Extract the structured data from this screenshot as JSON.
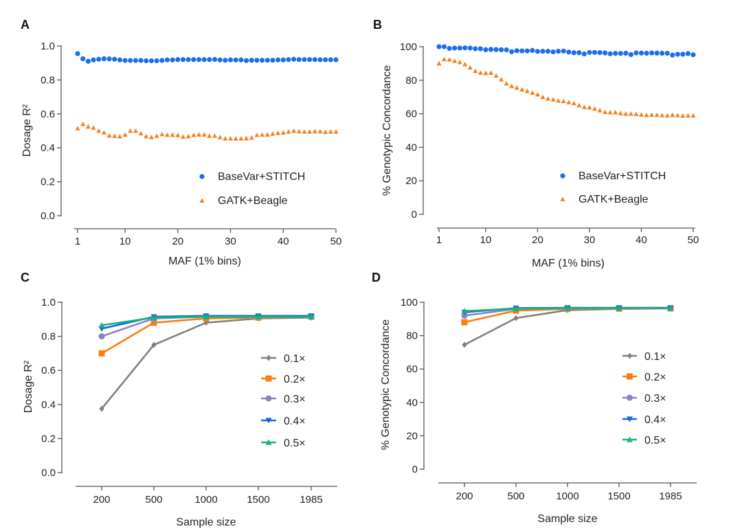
{
  "chart_data": [
    {
      "panel": "A",
      "type": "scatter",
      "xlabel": "MAF (1% bins)",
      "ylabel": "Dosage R²",
      "ylim": [
        0,
        1.0
      ],
      "xlim": [
        1,
        50
      ],
      "yticks": [
        "0.0",
        "0.2",
        "0.4",
        "0.6",
        "0.8",
        "1.0"
      ],
      "ytick_values": [
        0,
        0.2,
        0.4,
        0.6,
        0.8,
        1.0
      ],
      "xticks": [
        "1",
        "10",
        "20",
        "30",
        "40",
        "50"
      ],
      "xtick_values": [
        1,
        10,
        20,
        30,
        40,
        50
      ],
      "legend_position": "bottom-right",
      "series": [
        {
          "name": "BaseVar+STITCH",
          "marker": "circle",
          "color": "#1a6fe8",
          "values": [
            0.955,
            0.925,
            0.91,
            0.918,
            0.922,
            0.925,
            0.924,
            0.922,
            0.918,
            0.915,
            0.915,
            0.915,
            0.915,
            0.913,
            0.913,
            0.913,
            0.915,
            0.918,
            0.918,
            0.92,
            0.92,
            0.92,
            0.92,
            0.92,
            0.92,
            0.92,
            0.921,
            0.918,
            0.916,
            0.918,
            0.918,
            0.918,
            0.914,
            0.916,
            0.916,
            0.916,
            0.916,
            0.916,
            0.918,
            0.918,
            0.92,
            0.922,
            0.92,
            0.92,
            0.92,
            0.92,
            0.919,
            0.919,
            0.919,
            0.919
          ]
        },
        {
          "name": "GATK+Beagle",
          "marker": "triangle",
          "color": "#f58220",
          "values": [
            0.515,
            0.54,
            0.525,
            0.518,
            0.5,
            0.49,
            0.472,
            0.47,
            0.467,
            0.477,
            0.5,
            0.5,
            0.485,
            0.468,
            0.463,
            0.47,
            0.48,
            0.476,
            0.476,
            0.474,
            0.465,
            0.468,
            0.475,
            0.478,
            0.478,
            0.47,
            0.471,
            0.462,
            0.455,
            0.455,
            0.455,
            0.455,
            0.456,
            0.46,
            0.475,
            0.477,
            0.478,
            0.483,
            0.487,
            0.49,
            0.495,
            0.5,
            0.497,
            0.495,
            0.495,
            0.497,
            0.497,
            0.493,
            0.495,
            0.495
          ]
        }
      ]
    },
    {
      "panel": "B",
      "type": "scatter",
      "xlabel": "MAF (1% bins)",
      "ylabel": "% Genotypic Concordance",
      "ylim": [
        0,
        100
      ],
      "xlim": [
        1,
        50
      ],
      "yticks": [
        "0",
        "20",
        "40",
        "60",
        "80",
        "100"
      ],
      "ytick_values": [
        0,
        20,
        40,
        60,
        80,
        100
      ],
      "xticks": [
        "1",
        "10",
        "20",
        "30",
        "40",
        "50"
      ],
      "xtick_values": [
        1,
        10,
        20,
        30,
        40,
        50
      ],
      "legend_position": "bottom-right",
      "series": [
        {
          "name": "BaseVar+STITCH",
          "marker": "circle",
          "color": "#1a6fe8",
          "values": [
            100,
            100,
            99,
            99.2,
            99.2,
            99.3,
            99.2,
            98.8,
            98.8,
            98.2,
            98.4,
            98.3,
            98.2,
            98.1,
            97,
            97.6,
            97.5,
            97.5,
            97.8,
            97.2,
            97.3,
            97.3,
            96.9,
            97.3,
            97.4,
            96.8,
            96.4,
            96.4,
            95.7,
            96.6,
            96.6,
            96.5,
            96.3,
            95.8,
            96,
            96,
            96.1,
            95.3,
            96.3,
            96.2,
            96.1,
            96.3,
            96.2,
            96.1,
            96.1,
            95,
            95.5,
            95.5,
            95.9,
            95.2
          ]
        },
        {
          "name": "GATK+Beagle",
          "marker": "triangle",
          "color": "#f58220",
          "values": [
            90,
            92.5,
            92.3,
            91.5,
            90.8,
            89.5,
            87.5,
            85.5,
            84.5,
            84.3,
            84.4,
            82.8,
            80.5,
            78,
            76.5,
            75.5,
            74.5,
            73.5,
            72.5,
            71.5,
            70,
            69,
            68.5,
            67.8,
            67.5,
            66.8,
            66.3,
            65,
            64,
            63.8,
            63,
            62,
            61,
            60.8,
            60.8,
            60.3,
            60,
            60,
            59.8,
            59.5,
            59.2,
            59.4,
            59.3,
            59.1,
            58.9,
            59.2,
            59.1,
            58.8,
            58.9,
            58.9
          ]
        }
      ]
    },
    {
      "panel": "C",
      "type": "line",
      "xlabel": "Sample size",
      "ylabel": "Dosage R²",
      "ylim": [
        0,
        1.0
      ],
      "yticks": [
        "0.0",
        "0.2",
        "0.4",
        "0.6",
        "0.8",
        "1.0"
      ],
      "ytick_values": [
        0,
        0.2,
        0.4,
        0.6,
        0.8,
        1.0
      ],
      "categories": [
        "200",
        "500",
        "1000",
        "1500",
        "1985"
      ],
      "legend_position": "right",
      "series": [
        {
          "name": "0.1×",
          "marker": "diamond",
          "color": "#808080",
          "values": [
            0.375,
            0.75,
            0.88,
            0.905,
            0.91
          ]
        },
        {
          "name": "0.2×",
          "marker": "square",
          "color": "#fa7d12",
          "values": [
            0.7,
            0.88,
            0.905,
            0.91,
            0.915
          ]
        },
        {
          "name": "0.3×",
          "marker": "circle",
          "color": "#8a84c8",
          "values": [
            0.8,
            0.905,
            0.915,
            0.915,
            0.915
          ]
        },
        {
          "name": "0.4×",
          "marker": "triangle-down",
          "color": "#1565e0",
          "values": [
            0.845,
            0.915,
            0.92,
            0.92,
            0.92
          ]
        },
        {
          "name": "0.5×",
          "marker": "triangle",
          "color": "#13b37a",
          "values": [
            0.865,
            0.91,
            0.915,
            0.915,
            0.915
          ]
        }
      ]
    },
    {
      "panel": "D",
      "type": "line",
      "xlabel": "Sample size",
      "ylabel": "% Genotypic Concordance",
      "ylim": [
        0,
        100
      ],
      "yticks": [
        "0",
        "20",
        "40",
        "60",
        "80",
        "100"
      ],
      "ytick_values": [
        0,
        20,
        40,
        60,
        80,
        100
      ],
      "categories": [
        "200",
        "500",
        "1000",
        "1500",
        "1985"
      ],
      "legend_position": "right",
      "series": [
        {
          "name": "0.1×",
          "marker": "diamond",
          "color": "#808080",
          "values": [
            74.5,
            90.5,
            95.3,
            96,
            96.3
          ]
        },
        {
          "name": "0.2×",
          "marker": "square",
          "color": "#fa7d12",
          "values": [
            88,
            95,
            96,
            96.2,
            96.3
          ]
        },
        {
          "name": "0.3×",
          "marker": "circle",
          "color": "#8a84c8",
          "values": [
            92,
            96,
            96.3,
            96.4,
            96.4
          ]
        },
        {
          "name": "0.4×",
          "marker": "triangle-down",
          "color": "#1565e0",
          "values": [
            94,
            96.5,
            96.7,
            96.7,
            96.7
          ]
        },
        {
          "name": "0.5×",
          "marker": "triangle",
          "color": "#13b37a",
          "values": [
            94.7,
            96.2,
            96.5,
            96.5,
            96.5
          ]
        }
      ]
    }
  ]
}
